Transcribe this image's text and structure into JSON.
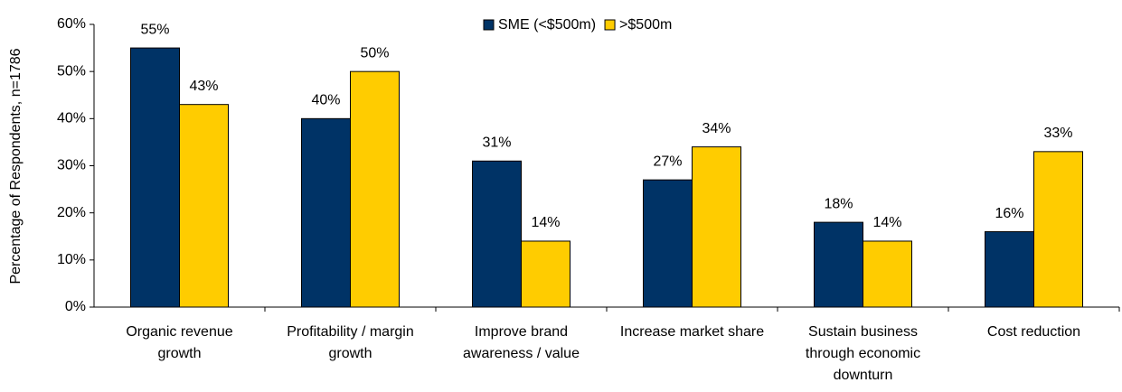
{
  "chart_data": {
    "type": "bar",
    "y_axis_label": "Percentage of Respondents, n=1786",
    "categories": [
      "Organic revenue growth",
      "Profitability / margin growth",
      "Improve brand awareness / value",
      "Increase market share",
      "Sustain business through economic downturn",
      "Cost reduction"
    ],
    "series": [
      {
        "name": "SME (<$500m)",
        "color": "#003366",
        "values": [
          55,
          40,
          31,
          27,
          18,
          16
        ],
        "value_labels": [
          "55%",
          "40%",
          "31%",
          "27%",
          "18%",
          "16%"
        ]
      },
      {
        "name": ">$500m",
        "color": "#ffcc00",
        "values": [
          43,
          50,
          14,
          34,
          14,
          33
        ],
        "value_labels": [
          "43%",
          "50%",
          "14%",
          "34%",
          "14%",
          "33%"
        ]
      }
    ],
    "ylim": [
      0,
      60
    ],
    "yticks": [
      {
        "value": 0,
        "label": "0%"
      },
      {
        "value": 10,
        "label": "10%"
      },
      {
        "value": 20,
        "label": "20%"
      },
      {
        "value": 30,
        "label": "30%"
      },
      {
        "value": 40,
        "label": "40%"
      },
      {
        "value": 50,
        "label": "50%"
      },
      {
        "value": 60,
        "label": "60%"
      }
    ],
    "legend_position": "top"
  }
}
